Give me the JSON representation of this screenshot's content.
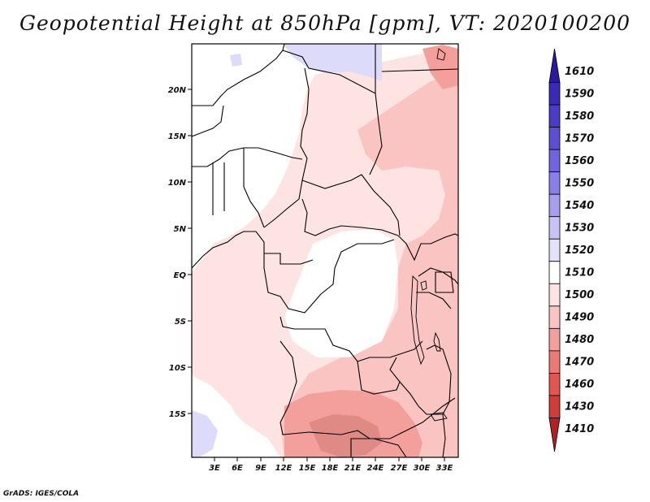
{
  "title": "Geopotential Height at 850hPa [gpm], VT: 2020100200",
  "credit": "GrADS: IGES/COLA",
  "map": {
    "y_ticks": [
      "20N",
      "15N",
      "10N",
      "5N",
      "EQ",
      "5S",
      "10S",
      "15S"
    ],
    "x_ticks": [
      "3E",
      "6E",
      "9E",
      "12E",
      "15E",
      "18E",
      "21E",
      "24E",
      "27E",
      "30E",
      "33E"
    ]
  },
  "colorbar": {
    "labels": [
      "1610",
      "1590",
      "1580",
      "1570",
      "1560",
      "1550",
      "1540",
      "1530",
      "1520",
      "1510",
      "1500",
      "1490",
      "1480",
      "1470",
      "1460",
      "1430",
      "1410"
    ],
    "colors": [
      "#2c1a9e",
      "#3a2ab5",
      "#4b3cc6",
      "#5e4ed3",
      "#7164de",
      "#8a7ee8",
      "#a79ef0",
      "#c8c2f6",
      "#e4e2fb",
      "#ffffff",
      "#fde3e1",
      "#f9c4c1",
      "#f3a09c",
      "#ec7a74",
      "#e2564f",
      "#d23c36",
      "#b02222"
    ]
  },
  "legend_colors": {
    "blue_low": "#dcdcfa",
    "pink_1": "#fde3e1",
    "pink_2": "#f9c4c1",
    "pink_3": "#f3a09c",
    "pink_4": "#e08a86"
  }
}
